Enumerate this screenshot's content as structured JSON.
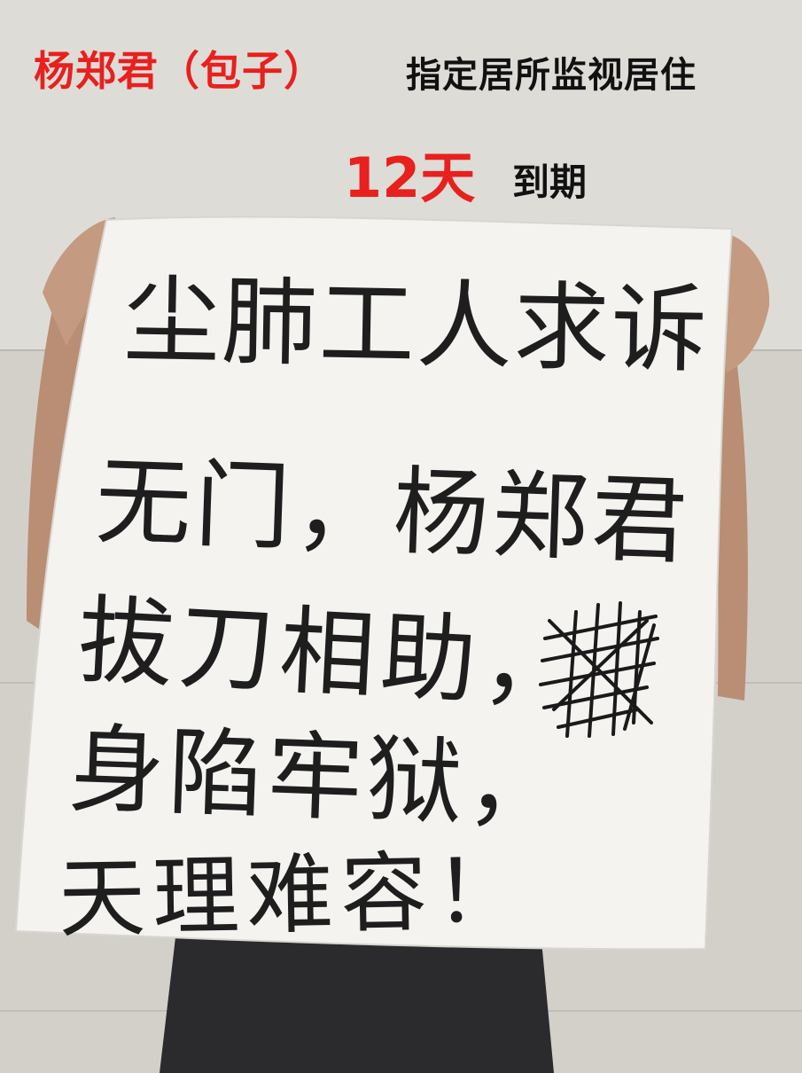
{
  "header": {
    "name": "杨郑君（包子）",
    "status": "指定居所监视居住",
    "days": "12天",
    "expire": "到期"
  },
  "sign": {
    "lines": [
      "尘肺工人求诉",
      "无门，杨郑君",
      "拔刀相助，",
      "身陷牢狱，",
      "天理难容！"
    ]
  },
  "colors": {
    "headline_red": "#e8201e",
    "headline_black": "#111111",
    "wall": "#d9d7d2",
    "paper": "#f4f3f0",
    "ink": "#1e1e1e"
  }
}
